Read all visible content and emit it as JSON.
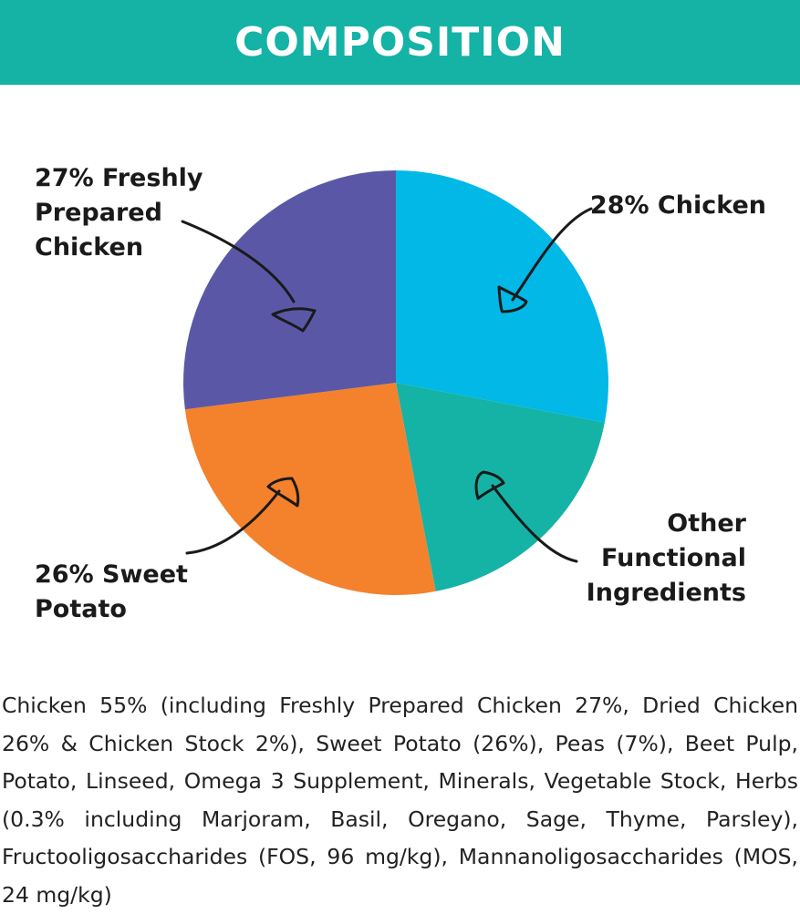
{
  "header": {
    "title": "COMPOSITION",
    "background": "#14b3a6"
  },
  "chart_data": {
    "type": "pie",
    "start": "top, clockwise",
    "slices": [
      {
        "label": [
          "28% Chicken"
        ],
        "value": 28,
        "color": "#01b8e6"
      },
      {
        "label": [
          "Other",
          "Functional",
          "Ingredients"
        ],
        "value": 19,
        "color": "#14b3a6"
      },
      {
        "label": [
          "26% Sweet",
          "Potato"
        ],
        "value": 26,
        "color": "#f4812c"
      },
      {
        "label": [
          "27% Freshly",
          "Prepared",
          "Chicken"
        ],
        "value": 27,
        "color": "#5a58a6"
      }
    ]
  },
  "composition_text": "Chicken 55% (including Freshly Prepared Chicken 27%, Dried Chicken 26% & Chicken Stock 2%), Sweet Potato (26%), Peas (7%), Beet Pulp, Potato, Linseed, Omega 3 Supplement, Minerals, Vegetable Stock, Herbs (0.3% including Marjoram, Basil, Oregano, Sage, Thyme, Parsley), Fructooligosaccharides (FOS, 96 mg/kg), Mannanoligosaccharides (MOS, 24 mg/kg)"
}
